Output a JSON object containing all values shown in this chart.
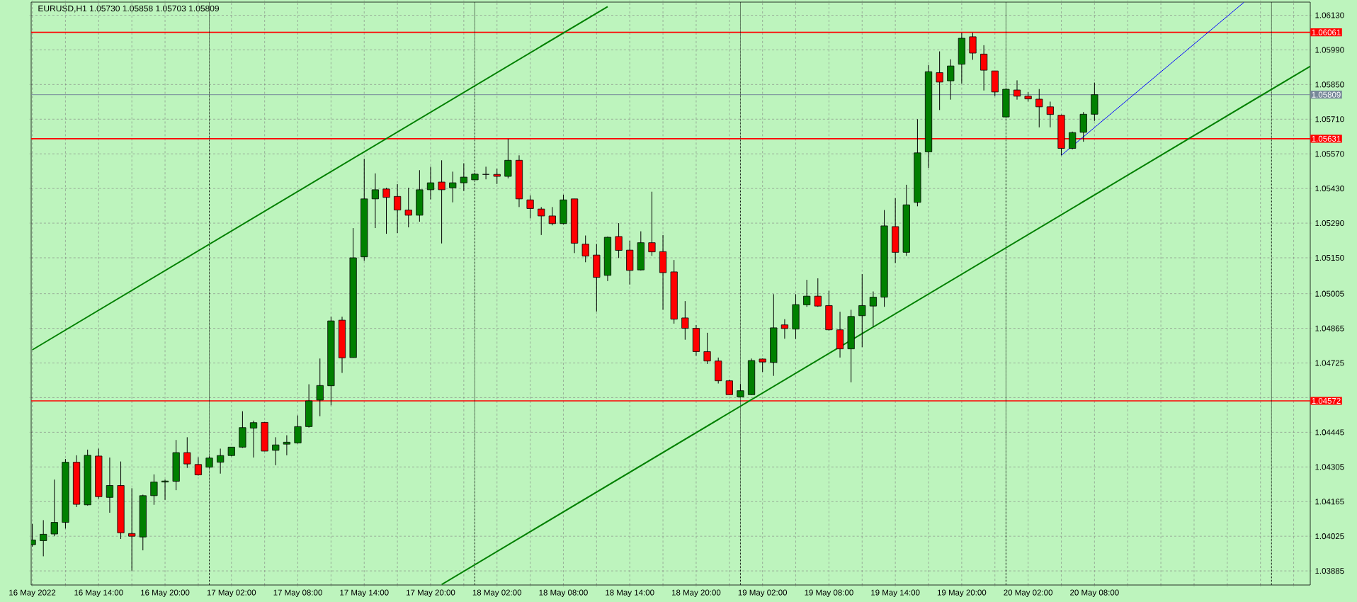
{
  "chart_data": {
    "type": "candlestick",
    "title": "EURUSD,H1 1.05730 1.05858 1.05703 1.05809",
    "x": [
      "2022-05-16T08:00",
      "2022-05-16T09:00",
      "2022-05-16T10:00",
      "2022-05-16T11:00",
      "2022-05-16T12:00",
      "2022-05-16T13:00",
      "2022-05-16T14:00",
      "2022-05-16T15:00",
      "2022-05-16T16:00",
      "2022-05-16T17:00",
      "2022-05-16T18:00",
      "2022-05-16T19:00",
      "2022-05-16T20:00",
      "2022-05-16T21:00",
      "2022-05-16T22:00",
      "2022-05-16T23:00",
      "2022-05-17T00:00",
      "2022-05-17T01:00",
      "2022-05-17T02:00",
      "2022-05-17T03:00",
      "2022-05-17T04:00",
      "2022-05-17T05:00",
      "2022-05-17T06:00",
      "2022-05-17T07:00",
      "2022-05-17T08:00",
      "2022-05-17T09:00",
      "2022-05-17T10:00",
      "2022-05-17T11:00",
      "2022-05-17T12:00",
      "2022-05-17T13:00",
      "2022-05-17T14:00",
      "2022-05-17T15:00",
      "2022-05-17T16:00",
      "2022-05-17T17:00",
      "2022-05-17T18:00",
      "2022-05-17T19:00",
      "2022-05-17T20:00",
      "2022-05-17T21:00",
      "2022-05-17T22:00",
      "2022-05-17T23:00",
      "2022-05-18T00:00",
      "2022-05-18T01:00",
      "2022-05-18T02:00",
      "2022-05-18T03:00",
      "2022-05-18T04:00",
      "2022-05-18T05:00",
      "2022-05-18T06:00",
      "2022-05-18T07:00",
      "2022-05-18T08:00",
      "2022-05-18T09:00",
      "2022-05-18T10:00",
      "2022-05-18T11:00",
      "2022-05-18T12:00",
      "2022-05-18T13:00",
      "2022-05-18T14:00",
      "2022-05-18T15:00",
      "2022-05-18T16:00",
      "2022-05-18T17:00",
      "2022-05-18T18:00",
      "2022-05-18T19:00",
      "2022-05-18T20:00",
      "2022-05-18T21:00",
      "2022-05-18T22:00",
      "2022-05-18T23:00",
      "2022-05-19T00:00",
      "2022-05-19T01:00",
      "2022-05-19T02:00",
      "2022-05-19T03:00",
      "2022-05-19T04:00",
      "2022-05-19T05:00",
      "2022-05-19T06:00",
      "2022-05-19T07:00",
      "2022-05-19T08:00",
      "2022-05-19T09:00",
      "2022-05-19T10:00",
      "2022-05-19T11:00",
      "2022-05-19T12:00",
      "2022-05-19T13:00",
      "2022-05-19T14:00",
      "2022-05-19T15:00",
      "2022-05-19T16:00",
      "2022-05-19T17:00",
      "2022-05-19T18:00",
      "2022-05-19T19:00",
      "2022-05-19T20:00",
      "2022-05-19T21:00",
      "2022-05-19T22:00",
      "2022-05-19T23:00",
      "2022-05-20T00:00",
      "2022-05-20T01:00",
      "2022-05-20T02:00",
      "2022-05-20T03:00",
      "2022-05-20T04:00",
      "2022-05-20T05:00",
      "2022-05-20T06:00",
      "2022-05-20T07:00",
      "2022-05-20T08:00"
    ],
    "ohlc": [
      [
        1.03991,
        1.04075,
        1.03983,
        1.0401
      ],
      [
        1.04007,
        1.0409,
        1.03944,
        1.04033
      ],
      [
        1.04034,
        1.04254,
        1.04025,
        1.04081
      ],
      [
        1.04081,
        1.04337,
        1.04056,
        1.04324
      ],
      [
        1.04324,
        1.04352,
        1.04143,
        1.04154
      ],
      [
        1.04152,
        1.04375,
        1.04149,
        1.04352
      ],
      [
        1.04349,
        1.04379,
        1.04177,
        1.04185
      ],
      [
        1.04182,
        1.04343,
        1.0412,
        1.0423
      ],
      [
        1.0423,
        1.04327,
        1.04014,
        1.04039
      ],
      [
        1.04036,
        1.04219,
        1.03886,
        1.04025
      ],
      [
        1.04022,
        1.04193,
        1.03968,
        1.04189
      ],
      [
        1.04189,
        1.04275,
        1.04152,
        1.04244
      ],
      [
        1.04244,
        1.04254,
        1.04172,
        1.04248
      ],
      [
        1.04247,
        1.04414,
        1.04211,
        1.04363
      ],
      [
        1.04363,
        1.04425,
        1.04301,
        1.04317
      ],
      [
        1.04315,
        1.04344,
        1.0427,
        1.04273
      ],
      [
        1.04304,
        1.04348,
        1.04301,
        1.04341
      ],
      [
        1.04324,
        1.04379,
        1.04278,
        1.04351
      ],
      [
        1.04351,
        1.04385,
        1.04348,
        1.04385
      ],
      [
        1.04385,
        1.0453,
        1.04382,
        1.04464
      ],
      [
        1.04462,
        1.04492,
        1.04343,
        1.04484
      ],
      [
        1.04485,
        1.04487,
        1.04368,
        1.04369
      ],
      [
        1.04372,
        1.04425,
        1.04312,
        1.04394
      ],
      [
        1.04397,
        1.04433,
        1.04352,
        1.04405
      ],
      [
        1.04402,
        1.04513,
        1.04399,
        1.04468
      ],
      [
        1.04468,
        1.04639,
        1.04464,
        1.04572
      ],
      [
        1.04575,
        1.04743,
        1.0451,
        1.04634
      ],
      [
        1.04633,
        1.04912,
        1.04554,
        1.04895
      ],
      [
        1.04898,
        1.04912,
        1.04685,
        1.04746
      ],
      [
        1.04747,
        1.0527,
        1.04747,
        1.0515
      ],
      [
        1.05154,
        1.0555,
        1.05138,
        1.05388
      ],
      [
        1.05388,
        1.05491,
        1.0527,
        1.05425
      ],
      [
        1.05428,
        1.05433,
        1.05247,
        1.05394
      ],
      [
        1.05398,
        1.05448,
        1.0525,
        1.05343
      ],
      [
        1.05343,
        1.05433,
        1.05273,
        1.05322
      ],
      [
        1.05322,
        1.05504,
        1.05296,
        1.05425
      ],
      [
        1.05425,
        1.05518,
        1.05386,
        1.05453
      ],
      [
        1.05456,
        1.05544,
        1.05208,
        1.05425
      ],
      [
        1.05433,
        1.05498,
        1.05374,
        1.05453
      ],
      [
        1.05453,
        1.05532,
        1.0542,
        1.05476
      ],
      [
        1.05465,
        1.05494,
        1.05464,
        1.05488
      ],
      [
        1.05487,
        1.05518,
        1.05467,
        1.05487
      ],
      [
        1.05487,
        1.0551,
        1.05448,
        1.05479
      ],
      [
        1.05479,
        1.05631,
        1.05471,
        1.05544
      ],
      [
        1.05544,
        1.05564,
        1.05355,
        1.05388
      ],
      [
        1.05384,
        1.05402,
        1.05309,
        1.05349
      ],
      [
        1.05347,
        1.05355,
        1.05242,
        1.05319
      ],
      [
        1.05319,
        1.05355,
        1.05281,
        1.05288
      ],
      [
        1.05288,
        1.05405,
        1.05285,
        1.05384
      ],
      [
        1.05388,
        1.05388,
        1.05169,
        1.05209
      ],
      [
        1.05205,
        1.0524,
        1.05132,
        1.05157
      ],
      [
        1.05161,
        1.05206,
        1.04933,
        1.05071
      ],
      [
        1.05079,
        1.05236,
        1.05056,
        1.05233
      ],
      [
        1.05236,
        1.0529,
        1.05149,
        1.0518
      ],
      [
        1.05181,
        1.05219,
        1.05042,
        1.05099
      ],
      [
        1.05101,
        1.05257,
        1.05099,
        1.05211
      ],
      [
        1.05211,
        1.05417,
        1.05158,
        1.05174
      ],
      [
        1.05175,
        1.05242,
        1.0494,
        1.0509
      ],
      [
        1.05093,
        1.05141,
        1.04884,
        1.04902
      ],
      [
        1.04907,
        1.04975,
        1.04819,
        1.04865
      ],
      [
        1.04865,
        1.04878,
        1.04754,
        1.04771
      ],
      [
        1.04771,
        1.04847,
        1.04721,
        1.04733
      ],
      [
        1.04733,
        1.04747,
        1.04642,
        1.04653
      ],
      [
        1.04653,
        1.04658,
        1.04596,
        1.04597
      ],
      [
        1.04588,
        1.0464,
        1.04586,
        1.04613
      ],
      [
        1.04597,
        1.04743,
        1.04596,
        1.04735
      ],
      [
        1.04741,
        1.04743,
        1.04689,
        1.04729
      ],
      [
        1.04727,
        1.05003,
        1.04673,
        1.04867
      ],
      [
        1.04879,
        1.04902,
        1.04823,
        1.04864
      ],
      [
        1.04862,
        1.05003,
        1.04822,
        1.04961
      ],
      [
        1.0496,
        1.05061,
        1.04952,
        1.04995
      ],
      [
        1.04995,
        1.05067,
        1.04952,
        1.04955
      ],
      [
        1.04957,
        1.05017,
        1.04856,
        1.04859
      ],
      [
        1.04859,
        1.04932,
        1.04747,
        1.04782
      ],
      [
        1.04782,
        1.0494,
        1.04647,
        1.04913
      ],
      [
        1.04916,
        1.05084,
        1.04789,
        1.04957
      ],
      [
        1.04955,
        1.05014,
        1.04871,
        1.04991
      ],
      [
        1.04991,
        1.05343,
        1.04952,
        1.05279
      ],
      [
        1.05276,
        1.05391,
        1.05129,
        1.05172
      ],
      [
        1.05172,
        1.05445,
        1.05158,
        1.05364
      ],
      [
        1.05374,
        1.0571,
        1.05358,
        1.05574
      ],
      [
        1.05578,
        1.05929,
        1.05513,
        1.05902
      ],
      [
        1.05898,
        1.05984,
        1.05747,
        1.0586
      ],
      [
        1.05865,
        1.05952,
        1.05789,
        1.05925
      ],
      [
        1.05932,
        1.06059,
        1.05854,
        1.06037
      ],
      [
        1.06043,
        1.06059,
        1.0595,
        1.05977
      ],
      [
        1.05973,
        1.06009,
        1.05826,
        1.05908
      ],
      [
        1.05905,
        1.05905,
        1.05803,
        1.0582
      ],
      [
        1.05719,
        1.05834,
        1.05719,
        1.05831
      ],
      [
        1.05828,
        1.05867,
        1.05789,
        1.05803
      ],
      [
        1.05803,
        1.0582,
        1.05781,
        1.05792
      ],
      [
        1.05791,
        1.05832,
        1.05677,
        1.0576
      ],
      [
        1.0576,
        1.05781,
        1.05677,
        1.05729
      ],
      [
        1.05726,
        1.05729,
        1.05564,
        1.05592
      ],
      [
        1.05592,
        1.0566,
        1.05588,
        1.05656
      ],
      [
        1.05657,
        1.05739,
        1.05619,
        1.0573
      ],
      [
        1.0573,
        1.05858,
        1.05703,
        1.05809
      ]
    ],
    "colors": [
      "#008000",
      "#008000",
      "#008000",
      "#008000",
      "#ff0000",
      "#008000",
      "#ff0000",
      "#008000",
      "#ff0000",
      "#ff0000",
      "#008000",
      "#008000",
      "#008000",
      "#008000",
      "#ff0000",
      "#ff0000",
      "#008000",
      "#008000",
      "#008000",
      "#008000",
      "#008000",
      "#ff0000",
      "#008000",
      "#008000",
      "#008000",
      "#008000",
      "#008000",
      "#008000",
      "#ff0000",
      "#008000",
      "#008000",
      "#008000",
      "#ff0000",
      "#ff0000",
      "#ff0000",
      "#008000",
      "#008000",
      "#ff0000",
      "#008000",
      "#008000",
      "#008000",
      "#000000",
      "#ff0000",
      "#008000",
      "#ff0000",
      "#ff0000",
      "#ff0000",
      "#ff0000",
      "#008000",
      "#ff0000",
      "#ff0000",
      "#ff0000",
      "#008000",
      "#ff0000",
      "#ff0000",
      "#008000",
      "#ff0000",
      "#ff0000",
      "#ff0000",
      "#ff0000",
      "#ff0000",
      "#ff0000",
      "#ff0000",
      "#ff0000",
      "#008000",
      "#008000",
      "#ff0000",
      "#008000",
      "#ff0000",
      "#008000",
      "#008000",
      "#ff0000",
      "#ff0000",
      "#ff0000",
      "#008000",
      "#008000",
      "#008000",
      "#008000",
      "#ff0000",
      "#008000",
      "#008000",
      "#008000",
      "#ff0000",
      "#008000",
      "#008000",
      "#ff0000",
      "#ff0000",
      "#ff0000",
      "#008000",
      "#ff0000",
      "#ff0000",
      "#ff0000",
      "#ff0000",
      "#ff0000",
      "#008000",
      "#008000",
      "#008000"
    ],
    "xlim": [
      "2022-05-16T07:54",
      "2022-05-21T03:30"
    ],
    "ylim": [
      1.03828,
      1.06183
    ],
    "xticks": [
      {
        "value": "2022-05-16T08:00",
        "label": "16 May 2022"
      },
      {
        "value": "2022-05-16T11:00",
        "label": null
      },
      {
        "value": "2022-05-16T14:00",
        "label": "16 May 14:00"
      },
      {
        "value": "2022-05-16T17:00",
        "label": null
      },
      {
        "value": "2022-05-16T20:00",
        "label": "16 May 20:00"
      },
      {
        "value": "2022-05-16T23:00",
        "label": null
      },
      {
        "value": "2022-05-17T02:00",
        "label": "17 May 02:00"
      },
      {
        "value": "2022-05-17T05:00",
        "label": null
      },
      {
        "value": "2022-05-17T08:00",
        "label": "17 May 08:00"
      },
      {
        "value": "2022-05-17T11:00",
        "label": null
      },
      {
        "value": "2022-05-17T14:00",
        "label": "17 May 14:00"
      },
      {
        "value": "2022-05-17T17:00",
        "label": null
      },
      {
        "value": "2022-05-17T20:00",
        "label": "17 May 20:00"
      },
      {
        "value": "2022-05-17T23:00",
        "label": null
      },
      {
        "value": "2022-05-18T02:00",
        "label": "18 May 02:00"
      },
      {
        "value": "2022-05-18T05:00",
        "label": null
      },
      {
        "value": "2022-05-18T08:00",
        "label": "18 May 08:00"
      },
      {
        "value": "2022-05-18T11:00",
        "label": null
      },
      {
        "value": "2022-05-18T14:00",
        "label": "18 May 14:00"
      },
      {
        "value": "2022-05-18T17:00",
        "label": null
      },
      {
        "value": "2022-05-18T20:00",
        "label": "18 May 20:00"
      },
      {
        "value": "2022-05-18T23:00",
        "label": null
      },
      {
        "value": "2022-05-19T02:00",
        "label": "19 May 02:00"
      },
      {
        "value": "2022-05-19T05:00",
        "label": null
      },
      {
        "value": "2022-05-19T08:00",
        "label": "19 May 08:00"
      },
      {
        "value": "2022-05-19T11:00",
        "label": null
      },
      {
        "value": "2022-05-19T14:00",
        "label": "19 May 14:00"
      },
      {
        "value": "2022-05-19T17:00",
        "label": null
      },
      {
        "value": "2022-05-19T20:00",
        "label": "19 May 20:00"
      },
      {
        "value": "2022-05-19T23:00",
        "label": null
      },
      {
        "value": "2022-05-20T02:00",
        "label": "20 May 02:00"
      },
      {
        "value": "2022-05-20T05:00",
        "label": null
      },
      {
        "value": "2022-05-20T08:00",
        "label": "20 May 08:00"
      },
      {
        "value": "2022-05-20T11:00",
        "label": null
      },
      {
        "value": "2022-05-20T14:00",
        "label": null
      },
      {
        "value": "2022-05-20T17:00",
        "label": null
      },
      {
        "value": "2022-05-20T20:00",
        "label": null
      },
      {
        "value": "2022-05-20T23:00",
        "label": null
      },
      {
        "value": "2022-05-21T02:00",
        "label": null
      }
    ],
    "yticks": [
      {
        "value": 1.0613,
        "label": "1.06130"
      },
      {
        "value": 1.0599,
        "label": "1.05990"
      },
      {
        "value": 1.0585,
        "label": "1.05850"
      },
      {
        "value": 1.0571,
        "label": "1.05710"
      },
      {
        "value": 1.0557,
        "label": "1.05570"
      },
      {
        "value": 1.0543,
        "label": "1.05430"
      },
      {
        "value": 1.0529,
        "label": "1.05290"
      },
      {
        "value": 1.0515,
        "label": "1.05150"
      },
      1.05005,
      1.04865,
      1.04725,
      {
        "value": 1.04585,
        "label": null
      },
      1.04445,
      1.04305,
      1.04165,
      1.04025,
      1.03885
    ],
    "grid": true,
    "ref_lines": [
      {
        "axis": "y",
        "value": 1.06061,
        "label": "1.06061",
        "color": "#ff0000"
      },
      {
        "axis": "y",
        "value": 1.05809,
        "label": "1.05809",
        "color": "#778899"
      },
      {
        "axis": "y",
        "value": 1.05631,
        "label": "1.05631",
        "color": "#ff0000"
      },
      {
        "axis": "y",
        "value": 1.04572,
        "label": "1.04572",
        "color": "#ff0000"
      },
      {
        "axis": "x",
        "value": "2022-05-17T00:00",
        "color": "#000000",
        "line_style": "dotted"
      },
      {
        "axis": "x",
        "value": "2022-05-18T00:00",
        "color": "#000000",
        "line_style": "dotted"
      },
      {
        "axis": "x",
        "value": "2022-05-19T00:00",
        "color": "#000000",
        "line_style": "dotted"
      },
      {
        "axis": "x",
        "value": "2022-05-20T00:00",
        "color": "#000000",
        "line_style": "dotted"
      },
      {
        "axis": "x",
        "value": "2022-05-21T00:00",
        "color": "#000000",
        "line_style": "dotted"
      }
    ],
    "series": [
      {
        "type": "line",
        "color": "#008000",
        "x": [
          "2022-05-16T08:00",
          "2022-05-18T12:00"
        ],
        "values": [
          1.04778,
          1.06165
        ]
      },
      {
        "type": "line",
        "color": "#008000",
        "x": [
          "2022-05-17T21:00",
          "2022-05-21T03:30"
        ],
        "values": [
          1.0383,
          1.05924
        ]
      },
      {
        "type": "line",
        "color": "#0000ff",
        "x": [
          "2022-05-20T05:00",
          "2022-05-20T21:30"
        ],
        "values": [
          1.05564,
          1.06182
        ]
      }
    ]
  }
}
